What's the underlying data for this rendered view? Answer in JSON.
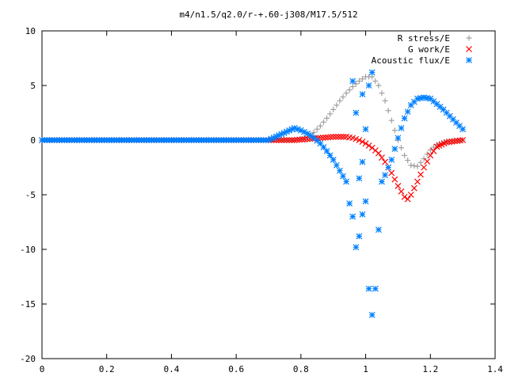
{
  "chart_data": {
    "type": "scatter",
    "title": "m4/n1.5/q2.0/r-+.60-j308/M17.5/512",
    "xlabel": "",
    "ylabel": "",
    "xlim": [
      0,
      1.4
    ],
    "ylim": [
      -20,
      10
    ],
    "x_ticks": [
      "0",
      "0.2",
      "0.4",
      "0.6",
      "0.8",
      "1",
      "1.2",
      "1.4"
    ],
    "y_ticks": [
      "10",
      "5",
      "0",
      "-5",
      "-10",
      "-15",
      "-20"
    ],
    "grid": false,
    "legend_position": "top-right",
    "series": [
      {
        "name": "R stress/E",
        "marker": "plus",
        "color": "#a0a0a0",
        "points": [
          [
            0.0,
            0
          ],
          [
            0.1,
            0
          ],
          [
            0.2,
            0
          ],
          [
            0.3,
            0
          ],
          [
            0.4,
            0
          ],
          [
            0.5,
            0
          ],
          [
            0.6,
            0
          ],
          [
            0.7,
            0
          ],
          [
            0.78,
            0.0
          ],
          [
            0.8,
            0.1
          ],
          [
            0.82,
            0.3
          ],
          [
            0.84,
            0.7
          ],
          [
            0.86,
            1.3
          ],
          [
            0.88,
            2.0
          ],
          [
            0.9,
            2.8
          ],
          [
            0.92,
            3.6
          ],
          [
            0.94,
            4.3
          ],
          [
            0.96,
            4.9
          ],
          [
            0.98,
            5.4
          ],
          [
            1.0,
            5.8
          ],
          [
            1.02,
            5.8
          ],
          [
            1.04,
            5.0
          ],
          [
            1.06,
            3.6
          ],
          [
            1.08,
            1.8
          ],
          [
            1.1,
            0.0
          ],
          [
            1.12,
            -1.4
          ],
          [
            1.14,
            -2.3
          ],
          [
            1.16,
            -2.4
          ],
          [
            1.18,
            -1.7
          ],
          [
            1.2,
            -0.9
          ],
          [
            1.22,
            -0.4
          ],
          [
            1.25,
            -0.1
          ],
          [
            1.3,
            0.0
          ]
        ]
      },
      {
        "name": "G work/E",
        "marker": "cross",
        "color": "#ff0000",
        "points": [
          [
            0.0,
            0
          ],
          [
            0.1,
            0
          ],
          [
            0.2,
            0
          ],
          [
            0.3,
            0
          ],
          [
            0.4,
            0
          ],
          [
            0.5,
            0
          ],
          [
            0.6,
            0
          ],
          [
            0.7,
            0
          ],
          [
            0.78,
            0.0
          ],
          [
            0.82,
            0.1
          ],
          [
            0.86,
            0.2
          ],
          [
            0.9,
            0.3
          ],
          [
            0.94,
            0.3
          ],
          [
            0.96,
            0.2
          ],
          [
            0.98,
            0.0
          ],
          [
            1.0,
            -0.3
          ],
          [
            1.02,
            -0.7
          ],
          [
            1.04,
            -1.2
          ],
          [
            1.06,
            -2.0
          ],
          [
            1.08,
            -3.0
          ],
          [
            1.1,
            -4.2
          ],
          [
            1.12,
            -5.2
          ],
          [
            1.13,
            -5.4
          ],
          [
            1.14,
            -5.0
          ],
          [
            1.16,
            -3.8
          ],
          [
            1.18,
            -2.5
          ],
          [
            1.2,
            -1.4
          ],
          [
            1.22,
            -0.6
          ],
          [
            1.25,
            -0.2
          ],
          [
            1.3,
            0.0
          ]
        ]
      },
      {
        "name": "Acoustic flux/E",
        "marker": "star",
        "color": "#0080ff",
        "points": [
          [
            0.0,
            0
          ],
          [
            0.1,
            0
          ],
          [
            0.2,
            0
          ],
          [
            0.3,
            0
          ],
          [
            0.4,
            0
          ],
          [
            0.5,
            0
          ],
          [
            0.6,
            0
          ],
          [
            0.7,
            0
          ],
          [
            0.78,
            1.1
          ],
          [
            0.8,
            0.9
          ],
          [
            0.82,
            0.6
          ],
          [
            0.84,
            0.2
          ],
          [
            0.86,
            -0.3
          ],
          [
            0.88,
            -1.0
          ],
          [
            0.9,
            -1.8
          ],
          [
            0.92,
            -2.8
          ],
          [
            0.94,
            -3.8
          ],
          [
            0.95,
            -5.8
          ],
          [
            0.96,
            -7.0
          ],
          [
            0.97,
            -9.8
          ],
          [
            0.98,
            -8.8
          ],
          [
            0.99,
            -6.8
          ],
          [
            1.0,
            -5.6
          ],
          [
            1.01,
            -13.6
          ],
          [
            1.02,
            -16.0
          ],
          [
            1.03,
            -13.6
          ],
          [
            1.04,
            -8.2
          ],
          [
            1.05,
            -3.8
          ],
          [
            1.06,
            -3.2
          ],
          [
            1.08,
            -1.8
          ],
          [
            1.1,
            0.2
          ],
          [
            1.12,
            2.0
          ],
          [
            1.14,
            3.2
          ],
          [
            1.16,
            3.8
          ],
          [
            1.18,
            3.9
          ],
          [
            1.2,
            3.8
          ],
          [
            1.22,
            3.3
          ],
          [
            1.24,
            2.8
          ],
          [
            1.26,
            2.2
          ],
          [
            1.28,
            1.6
          ],
          [
            1.3,
            1.0
          ],
          [
            0.97,
            2.5
          ],
          [
            0.99,
            4.2
          ],
          [
            1.01,
            5.0
          ],
          [
            1.02,
            6.2
          ],
          [
            0.96,
            5.4
          ],
          [
            1.0,
            1.0
          ],
          [
            0.99,
            -2.0
          ],
          [
            0.98,
            -3.5
          ]
        ]
      }
    ]
  }
}
